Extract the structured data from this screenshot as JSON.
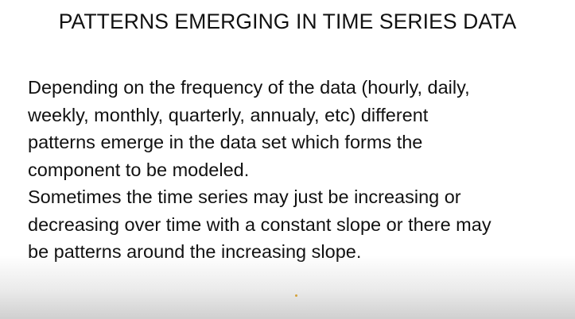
{
  "slide": {
    "title": "PATTERNS EMERGING IN TIME SERIES DATA",
    "body_lines": [
      "Depending on the frequency of the data (hourly, daily,",
      "weekly, monthly, quarterly, annualy, etc) different",
      "patterns emerge in the data set which forms the",
      "component to be modeled.",
      "Sometimes the time series may just be increasing or",
      "decreasing over time with a constant slope or there may",
      "be patterns around the increasing slope."
    ]
  },
  "colors": {
    "text": "#111111",
    "background": "#ffffff",
    "pointer": "#d4a23a"
  }
}
